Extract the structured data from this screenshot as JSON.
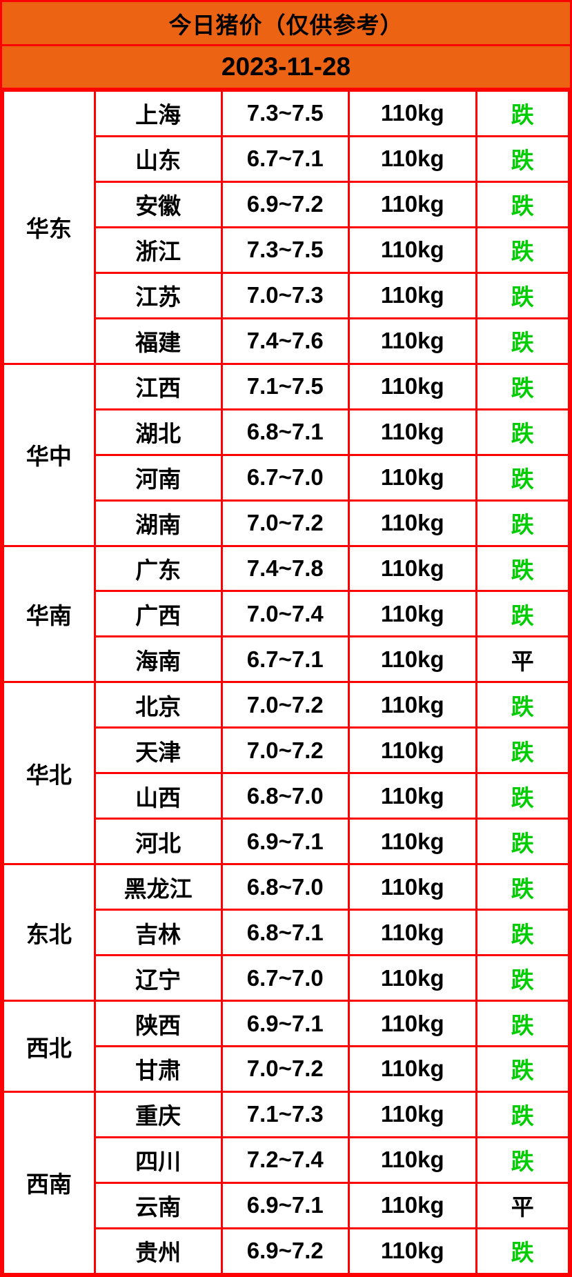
{
  "header": {
    "title": "今日猪价（仅供参考）",
    "date": "2023-11-28"
  },
  "colors": {
    "header_orange": "#ec6413",
    "grid_red": "#fe0000",
    "status_down_green": "#00cd00",
    "status_flat_black": "#000000"
  },
  "table": {
    "regions": [
      {
        "name": "华东",
        "rows": [
          {
            "province": "上海",
            "price": "7.3~7.5",
            "weight": "110kg",
            "status": "跌",
            "trend": "down"
          },
          {
            "province": "山东",
            "price": "6.7~7.1",
            "weight": "110kg",
            "status": "跌",
            "trend": "down"
          },
          {
            "province": "安徽",
            "price": "6.9~7.2",
            "weight": "110kg",
            "status": "跌",
            "trend": "down"
          },
          {
            "province": "浙江",
            "price": "7.3~7.5",
            "weight": "110kg",
            "status": "跌",
            "trend": "down"
          },
          {
            "province": "江苏",
            "price": "7.0~7.3",
            "weight": "110kg",
            "status": "跌",
            "trend": "down"
          },
          {
            "province": "福建",
            "price": "7.4~7.6",
            "weight": "110kg",
            "status": "跌",
            "trend": "down"
          }
        ]
      },
      {
        "name": "华中",
        "rows": [
          {
            "province": "江西",
            "price": "7.1~7.5",
            "weight": "110kg",
            "status": "跌",
            "trend": "down"
          },
          {
            "province": "湖北",
            "price": "6.8~7.1",
            "weight": "110kg",
            "status": "跌",
            "trend": "down"
          },
          {
            "province": "河南",
            "price": "6.7~7.0",
            "weight": "110kg",
            "status": "跌",
            "trend": "down"
          },
          {
            "province": "湖南",
            "price": "7.0~7.2",
            "weight": "110kg",
            "status": "跌",
            "trend": "down"
          }
        ]
      },
      {
        "name": "华南",
        "rows": [
          {
            "province": "广东",
            "price": "7.4~7.8",
            "weight": "110kg",
            "status": "跌",
            "trend": "down"
          },
          {
            "province": "广西",
            "price": "7.0~7.4",
            "weight": "110kg",
            "status": "跌",
            "trend": "down"
          },
          {
            "province": "海南",
            "price": "6.7~7.1",
            "weight": "110kg",
            "status": "平",
            "trend": "flat"
          }
        ]
      },
      {
        "name": "华北",
        "rows": [
          {
            "province": "北京",
            "price": "7.0~7.2",
            "weight": "110kg",
            "status": "跌",
            "trend": "down"
          },
          {
            "province": "天津",
            "price": "7.0~7.2",
            "weight": "110kg",
            "status": "跌",
            "trend": "down"
          },
          {
            "province": "山西",
            "price": "6.8~7.0",
            "weight": "110kg",
            "status": "跌",
            "trend": "down"
          },
          {
            "province": "河北",
            "price": "6.9~7.1",
            "weight": "110kg",
            "status": "跌",
            "trend": "down"
          }
        ]
      },
      {
        "name": "东北",
        "rows": [
          {
            "province": "黑龙江",
            "price": "6.8~7.0",
            "weight": "110kg",
            "status": "跌",
            "trend": "down"
          },
          {
            "province": "吉林",
            "price": "6.8~7.1",
            "weight": "110kg",
            "status": "跌",
            "trend": "down"
          },
          {
            "province": "辽宁",
            "price": "6.7~7.0",
            "weight": "110kg",
            "status": "跌",
            "trend": "down"
          }
        ]
      },
      {
        "name": "西北",
        "rows": [
          {
            "province": "陕西",
            "price": "6.9~7.1",
            "weight": "110kg",
            "status": "跌",
            "trend": "down"
          },
          {
            "province": "甘肃",
            "price": "7.0~7.2",
            "weight": "110kg",
            "status": "跌",
            "trend": "down"
          }
        ]
      },
      {
        "name": "西南",
        "rows": [
          {
            "province": "重庆",
            "price": "7.1~7.3",
            "weight": "110kg",
            "status": "跌",
            "trend": "down"
          },
          {
            "province": "四川",
            "price": "7.2~7.4",
            "weight": "110kg",
            "status": "跌",
            "trend": "down"
          },
          {
            "province": "云南",
            "price": "6.9~7.1",
            "weight": "110kg",
            "status": "平",
            "trend": "flat"
          },
          {
            "province": "贵州",
            "price": "6.9~7.2",
            "weight": "110kg",
            "status": "跌",
            "trend": "down"
          }
        ]
      }
    ]
  }
}
